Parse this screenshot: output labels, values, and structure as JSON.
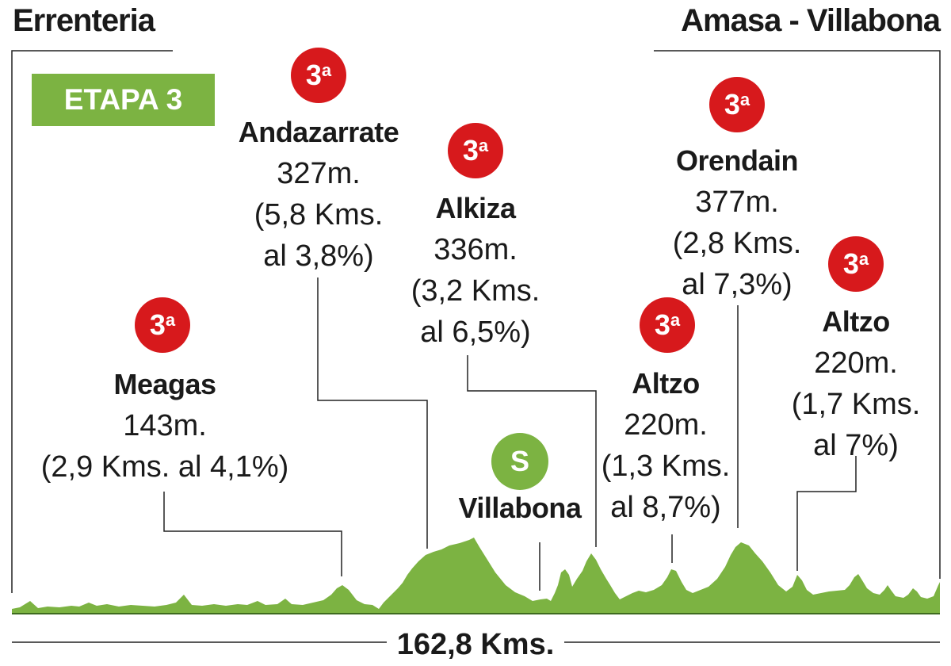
{
  "start_city": "Errenteria",
  "finish_city": "Amasa - Villabona",
  "stage_label": "ETAPA 3",
  "total_distance": "162,8 Kms.",
  "climbs": [
    {
      "id": "meagas",
      "category": "3",
      "category_suffix": "a",
      "name": "Meagas",
      "altitude": "143m.",
      "detail_1": "(2,9 Kms. al 4,1%)",
      "detail_2": ""
    },
    {
      "id": "andazarrate",
      "category": "3",
      "category_suffix": "a",
      "name": "Andazarrate",
      "altitude": "327m.",
      "detail_1": "(5,8 Kms.",
      "detail_2": "al 3,8%)"
    },
    {
      "id": "alkiza",
      "category": "3",
      "category_suffix": "a",
      "name": "Alkiza",
      "altitude": "336m.",
      "detail_1": "(3,2 Kms.",
      "detail_2": "al 6,5%)"
    },
    {
      "id": "altzo1",
      "category": "3",
      "category_suffix": "a",
      "name": "Altzo",
      "altitude": "220m.",
      "detail_1": "(1,3 Kms.",
      "detail_2": "al 8,7%)"
    },
    {
      "id": "orendain",
      "category": "3",
      "category_suffix": "a",
      "name": "Orendain",
      "altitude": "377m.",
      "detail_1": "(2,8 Kms.",
      "detail_2": "al 7,3%)"
    },
    {
      "id": "altzo2",
      "category": "3",
      "category_suffix": "a",
      "name": "Altzo",
      "altitude": "220m.",
      "detail_1": "(1,7 Kms.",
      "detail_2": "al 7%)"
    }
  ],
  "sprint": {
    "symbol": "S",
    "name": "Villabona"
  },
  "colors": {
    "profile": "#7cb342",
    "category": "#d7191c",
    "stage_badge": "#7cb342",
    "text": "#1a1a1a"
  }
}
